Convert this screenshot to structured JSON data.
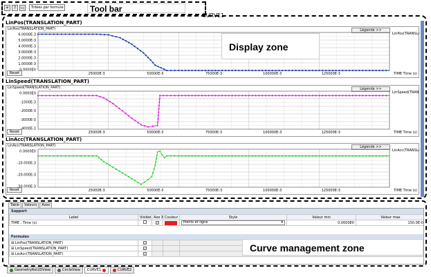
{
  "toolbar": {
    "combo_value": "Trilées par formule",
    "callout": "Tool bar"
  },
  "window_title": "CURVE1",
  "display_zone_label": "Display zone",
  "curve_zone_label": "Curve management zone",
  "charts": [
    {
      "title": "LinPos(TRANSLATION_PART)",
      "inner_title": "LinPos(TRANSLATION_PART)",
      "legend_btn": "Légende >>",
      "reset_btn": "Reset",
      "series_label": "LinPos(TRANSLATION_PART)",
      "color": "#1a2fa0",
      "yticks": [
        "6.0000E-3",
        "5.0000E-3",
        "4.0000E-3",
        "3.0000E-3",
        "2.0000E-3",
        "1.0000E-3",
        "0.0000E0"
      ],
      "xticks": [
        "25000E-3",
        "50000E-3",
        "75000E-3",
        "100000E-3",
        "125000E-3"
      ],
      "xaxis_label": "TIME Time (s)"
    },
    {
      "title": "LinSpeed(TRANSLATION_PART)",
      "inner_title": "LinSpeed(TRANSLATION_PART)",
      "legend_btn": "Légende >>",
      "reset_btn": "Reset",
      "series_label": "LinSpeed(TRANSLATION_PART)",
      "color": "#d61bd6",
      "yticks": [
        "0.0000E0",
        "-1000E-3",
        "-2000E-3",
        "-3000E-3",
        "-4000E-3"
      ],
      "xticks": [
        "25000E-3",
        "50000E-3",
        "75000E-3",
        "100000E-3",
        "125000E-3"
      ],
      "xaxis_label": "TIME Time (s)"
    },
    {
      "title": "LinAcc(TRANSLATION_PART)",
      "inner_title": "LinAcc(TRANSLATION_PART)",
      "legend_btn": "Légende >>",
      "reset_btn": "Reset",
      "series_label": "LinAcc(TRANSLATION_PART)",
      "color": "#2fd62f",
      "yticks": [
        "0.0000E0",
        "-10.000E-3",
        "-20.000E-3",
        "-30.000E-3"
      ],
      "xticks": [
        "25000E-3",
        "50000E-3",
        "75000E-3",
        "100000E-3",
        "125000E-3"
      ],
      "xaxis_label": "TIME Time (s)"
    }
  ],
  "chart_data": [
    {
      "type": "line",
      "title": "LinPos(TRANSLATION_PART)",
      "xlabel": "TIME Time (s)",
      "ylabel": "",
      "xlim": [
        0,
        150
      ],
      "ylim": [
        0,
        6.5
      ],
      "x": [
        0,
        5,
        10,
        15,
        20,
        25,
        30,
        35,
        40,
        45,
        48,
        50,
        55,
        60,
        70,
        80,
        90,
        100,
        110,
        120,
        130,
        140,
        150
      ],
      "series": [
        {
          "name": "LinPos(TRANSLATION_PART)",
          "values": [
            6.2,
            6.2,
            6.2,
            6.2,
            6.2,
            6.2,
            6.1,
            5.6,
            4.5,
            3.0,
            1.8,
            0.9,
            0.0,
            0.0,
            0.0,
            0.0,
            0.0,
            0.0,
            0.0,
            0.0,
            0.0,
            0.0,
            0.0
          ]
        }
      ]
    },
    {
      "type": "line",
      "title": "LinSpeed(TRANSLATION_PART)",
      "xlabel": "TIME Time (s)",
      "ylabel": "",
      "xlim": [
        0,
        150
      ],
      "ylim": [
        -4.6,
        0.6
      ],
      "x": [
        0,
        5,
        10,
        15,
        20,
        25,
        28,
        32,
        36,
        40,
        44,
        47,
        49,
        51,
        52,
        55,
        60,
        70,
        80,
        90,
        100,
        110,
        120,
        130,
        140,
        150
      ],
      "series": [
        {
          "name": "LinSpeed(TRANSLATION_PART)",
          "values": [
            0.0,
            0.0,
            0.0,
            0.0,
            0.0,
            0.0,
            -0.3,
            -1.1,
            -2.1,
            -3.1,
            -4.0,
            -4.3,
            -4.2,
            -4.1,
            0.0,
            0.0,
            0.0,
            0.0,
            0.0,
            0.0,
            0.0,
            0.0,
            0.0,
            0.0,
            0.0,
            0.0
          ]
        }
      ]
    },
    {
      "type": "line",
      "title": "LinAcc(TRANSLATION_PART)",
      "xlabel": "TIME Time (s)",
      "ylabel": "",
      "xlim": [
        0,
        150
      ],
      "ylim": [
        -33,
        7
      ],
      "x": [
        0,
        5,
        10,
        15,
        20,
        25,
        28,
        32,
        36,
        40,
        44,
        47,
        48.5,
        50,
        51,
        52,
        53,
        54,
        55,
        60,
        70,
        80,
        90,
        100,
        110,
        120,
        130,
        140,
        150
      ],
      "series": [
        {
          "name": "LinAcc(TRANSLATION_PART)",
          "values": [
            0.0,
            0.0,
            0.0,
            0.0,
            0.0,
            0.0,
            -6.0,
            -12.0,
            -18.0,
            -24.0,
            -30.0,
            -25.0,
            -22.0,
            -10.0,
            4.0,
            5.0,
            1.0,
            -2.0,
            0.0,
            0.0,
            0.0,
            0.0,
            0.0,
            0.0,
            0.0,
            0.0,
            0.0,
            0.0,
            0.0
          ]
        }
      ]
    }
  ],
  "panel": {
    "tabs": [
      "Table",
      "Valeurs",
      "Axes"
    ],
    "columns": [
      "Label",
      "Visible",
      "Axe X",
      "Couleur",
      "Style",
      "Valeur min",
      "Valeur max"
    ],
    "support_header": "Support",
    "support_row": {
      "label": "TIME : Time (s)",
      "style": "Points et ligne",
      "min": "0.0000E0",
      "max": "150.0E-0",
      "color": "#e61d1d"
    },
    "formulas_header": "Formules",
    "formula_rows": [
      {
        "label": "LinPos(TRANSLATION_PART)"
      },
      {
        "label": "LinSpeed(TRANSLATION_PART)"
      },
      {
        "label": "LinAcc(TRANSLATION_PART)"
      }
    ]
  },
  "bottom_tabs": [
    {
      "label": "GeometryRot2DView",
      "color": "#2a7a2a"
    },
    {
      "label": "CircleView",
      "color": "#555555"
    },
    {
      "label": "CURVE1",
      "color": "#e61d1d"
    },
    {
      "label": "CURVE2",
      "color": "#e61d1d"
    }
  ]
}
